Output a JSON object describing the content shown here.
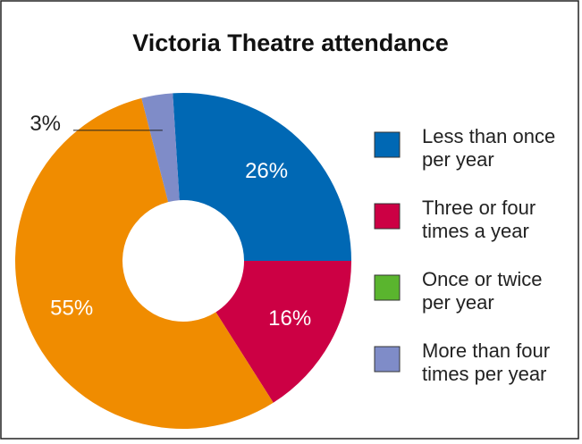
{
  "chart_data": {
    "type": "donut",
    "title": "Victoria Theatre attendance",
    "categories": [
      "Less than once per year",
      "Three or four times a year",
      "Once or twice per year",
      "More than four times per year"
    ],
    "values": [
      26,
      16,
      55,
      3
    ],
    "value_labels": [
      "26%",
      "16%",
      "55%",
      "3%"
    ],
    "colors": [
      "#0068b4",
      "#cc0044",
      "#f08c00",
      "#7f8cc8"
    ],
    "legend_colors": [
      "#0068b4",
      "#cc0044",
      "#5ab52e",
      "#7f8cc8"
    ],
    "legend": "right"
  }
}
